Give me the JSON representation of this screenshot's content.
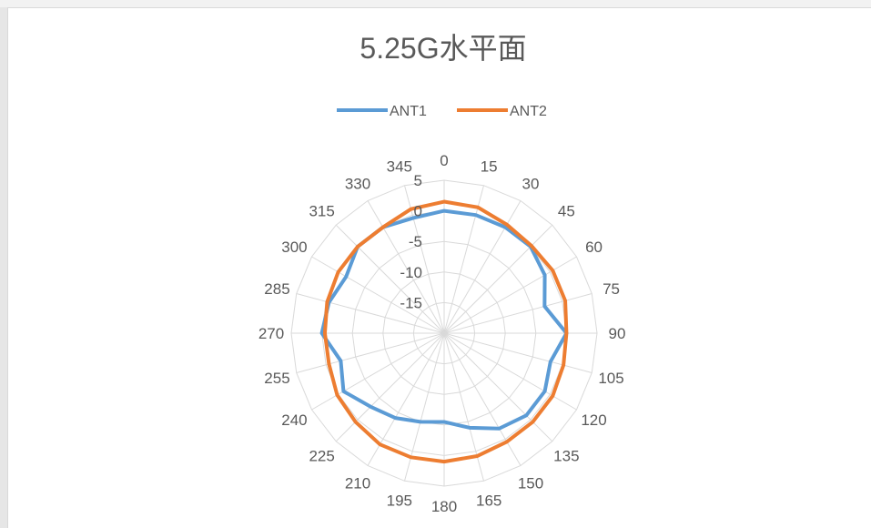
{
  "chart_data": {
    "type": "radar",
    "title": "5.25G水平面",
    "legend_position": "top",
    "categories": [
      "0",
      "15",
      "30",
      "45",
      "60",
      "75",
      "90",
      "105",
      "120",
      "135",
      "150",
      "165",
      "180",
      "195",
      "210",
      "225",
      "240",
      "255",
      "270",
      "285",
      "300",
      "315",
      "330",
      "345"
    ],
    "radial_ticks": [
      "5",
      "0",
      "-5",
      "-10",
      "-15"
    ],
    "rlim": [
      -20,
      5
    ],
    "grid": true,
    "series": [
      {
        "name": "ANT1",
        "color": "#5b9bd5",
        "values": [
          0,
          0,
          0,
          0,
          -1,
          -3,
          0,
          -2,
          -1,
          -1,
          -2,
          -4,
          -5.5,
          -5,
          -4,
          -3,
          -1,
          -2.5,
          0,
          -0.5,
          -1.5,
          0,
          0,
          -0.5
        ]
      },
      {
        "name": "ANT2",
        "color": "#ed7d31",
        "values": [
          1.5,
          1.3,
          0.5,
          0.2,
          0.5,
          0.5,
          0,
          0.2,
          0.5,
          0.5,
          0.5,
          0.8,
          1,
          1,
          1,
          0.5,
          0.2,
          -0.5,
          -0.5,
          -0.2,
          0,
          0,
          0,
          1
        ]
      }
    ]
  }
}
